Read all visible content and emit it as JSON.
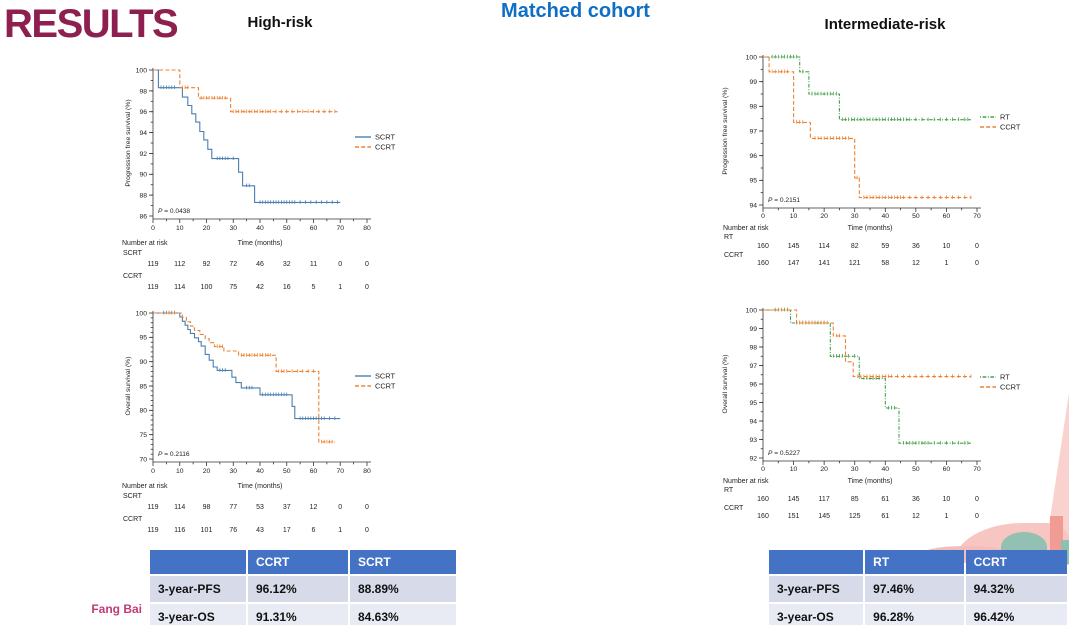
{
  "slide": {
    "title": "RESULTS",
    "subtitle": "Matched cohort",
    "left_heading": "High-risk",
    "right_heading": "Intermediate-risk",
    "author": "Fang Bai"
  },
  "colors": {
    "title": "#8e2050",
    "subtitle_blue": "#0f6fc6",
    "risk_label_blue": "#3a3ac8",
    "scrt": "#4a7fb0",
    "ccrt": "#ed8333",
    "rt": "#44a049",
    "table_header": "#4472c4",
    "author_pink": "#c23a78"
  },
  "chart_data": [
    {
      "type": "line",
      "subtype": "kaplan-meier-step",
      "title": "High-risk",
      "ylabel": "Progression free survival (%)",
      "xlabel": "Time (months)",
      "ylim": [
        86,
        100
      ],
      "ytick_step": 2,
      "xlim": [
        0,
        80
      ],
      "xtick_step": 10,
      "p_value": "P = 0.0438",
      "legend_position": "right",
      "series": [
        {
          "name": "SCRT",
          "color_key": "scrt",
          "dash": "solid",
          "points": [
            [
              0,
              100
            ],
            [
              2,
              98.3
            ],
            [
              11,
              97.4
            ],
            [
              13,
              96.6
            ],
            [
              14.5,
              95.8
            ],
            [
              16,
              95
            ],
            [
              17.5,
              94.1
            ],
            [
              19,
              93.3
            ],
            [
              20.5,
              92.4
            ],
            [
              22,
              91.5
            ],
            [
              32,
              90.2
            ],
            [
              33.5,
              88.9
            ],
            [
              38,
              87.3
            ]
          ],
          "end": 70,
          "censors": [
            3,
            4,
            5,
            6,
            7,
            8,
            24,
            25,
            26,
            27,
            28,
            30,
            35,
            36,
            40,
            41,
            42,
            43,
            44,
            45,
            46,
            47,
            48,
            49,
            50,
            51,
            52,
            53,
            55,
            57,
            59,
            61,
            63,
            65,
            67,
            69
          ]
        },
        {
          "name": "CCRT",
          "color_key": "ccrt",
          "dash": "dashed",
          "points": [
            [
              0,
              100
            ],
            [
              10,
              98.3
            ],
            [
              17,
              97.3
            ],
            [
              29,
              96
            ]
          ],
          "end": 69,
          "censors": [
            11,
            12,
            13,
            18,
            19,
            20,
            21,
            22,
            23,
            24,
            25,
            26,
            27,
            30,
            31,
            32,
            33,
            34,
            35,
            36,
            37,
            38,
            39,
            40,
            41,
            42,
            43,
            44,
            46,
            48,
            50,
            52,
            54,
            56,
            58,
            60,
            62,
            64,
            66,
            68
          ]
        }
      ],
      "number_at_risk": {
        "label": "Number at risk",
        "times": [
          0,
          10,
          20,
          30,
          40,
          50,
          60,
          70,
          80
        ],
        "rows": [
          {
            "name": "SCRT",
            "values": [
              119,
              112,
              92,
              72,
              46,
              32,
              11,
              0,
              0
            ]
          },
          {
            "name": "CCRT",
            "values": [
              119,
              114,
              100,
              75,
              42,
              16,
              5,
              1,
              0
            ]
          }
        ]
      }
    },
    {
      "type": "line",
      "subtype": "kaplan-meier-step",
      "title": "High-risk",
      "ylabel": "Overall survival (%)",
      "xlabel": "Time (months)",
      "ylim": [
        70,
        100
      ],
      "ytick_step": 5,
      "xlim": [
        0,
        80
      ],
      "xtick_step": 10,
      "p_value": "P = 0.2116",
      "legend_position": "right",
      "series": [
        {
          "name": "SCRT",
          "color_key": "scrt",
          "dash": "solid",
          "points": [
            [
              0,
              100
            ],
            [
              10,
              99.2
            ],
            [
              11,
              98.3
            ],
            [
              12,
              97.5
            ],
            [
              13,
              96.6
            ],
            [
              14,
              95.8
            ],
            [
              15.5,
              94.9
            ],
            [
              17,
              94.1
            ],
            [
              18,
              93.2
            ],
            [
              19.5,
              91.5
            ],
            [
              21,
              90.3
            ],
            [
              22.5,
              88.9
            ],
            [
              24,
              88.2
            ],
            [
              29.5,
              86.8
            ],
            [
              31,
              85.7
            ],
            [
              33,
              84.6
            ],
            [
              40,
              83.2
            ],
            [
              52,
              80.8
            ],
            [
              53,
              78.3
            ]
          ],
          "end": 70,
          "censors": [
            4,
            5,
            6,
            7,
            8,
            25,
            26,
            27,
            35,
            36,
            37,
            41,
            42,
            43,
            44,
            45,
            46,
            47,
            48,
            49,
            50,
            55,
            56,
            57,
            58,
            59,
            60,
            61,
            62,
            63,
            64,
            66,
            68
          ]
        },
        {
          "name": "CCRT",
          "color_key": "ccrt",
          "dash": "dashed",
          "points": [
            [
              0,
              100
            ],
            [
              11,
              99.1
            ],
            [
              12.5,
              98.2
            ],
            [
              14,
              97.3
            ],
            [
              15.5,
              96.4
            ],
            [
              17.5,
              95.6
            ],
            [
              19.5,
              94.7
            ],
            [
              21,
              93.9
            ],
            [
              23,
              93.1
            ],
            [
              26.5,
              92.2
            ],
            [
              32,
              91.3
            ],
            [
              46,
              88
            ],
            [
              62,
              73.5
            ]
          ],
          "end": 68,
          "censors": [
            5,
            6,
            8,
            24,
            25,
            26,
            33,
            34,
            35,
            36,
            37,
            38,
            39,
            40,
            41,
            42,
            43,
            44,
            47,
            48,
            49,
            50,
            52,
            54,
            56,
            58,
            60,
            63,
            64,
            65,
            66,
            67
          ]
        }
      ],
      "number_at_risk": {
        "label": "Number at risk",
        "times": [
          0,
          10,
          20,
          30,
          40,
          50,
          60,
          70,
          80
        ],
        "rows": [
          {
            "name": "SCRT",
            "values": [
              119,
              114,
              98,
              77,
              53,
              37,
              12,
              0,
              0
            ]
          },
          {
            "name": "CCRT",
            "values": [
              119,
              116,
              101,
              76,
              43,
              17,
              6,
              1,
              0
            ]
          }
        ]
      }
    },
    {
      "type": "line",
      "subtype": "kaplan-meier-step",
      "title": "Intermediate-risk",
      "ylabel": "Progression free survival (%)",
      "xlabel": "Time (months)",
      "ylim": [
        94,
        100
      ],
      "ytick_step": 1,
      "xlim": [
        0,
        70
      ],
      "xtick_step": 10,
      "p_value": "P = 0.2151",
      "legend_position": "right",
      "series": [
        {
          "name": "RT",
          "color_key": "rt",
          "dash": "dashdot",
          "points": [
            [
              0,
              100
            ],
            [
              12,
              99.4
            ],
            [
              15,
              98.5
            ],
            [
              25,
              97.46
            ]
          ],
          "end": 68,
          "censors": [
            3,
            4,
            5,
            6,
            7,
            8,
            9,
            10,
            11,
            13,
            16,
            17,
            18,
            19,
            20,
            21,
            22,
            23,
            24,
            26,
            27,
            28,
            29,
            30,
            31,
            32,
            33,
            34,
            35,
            36,
            37,
            38,
            39,
            40,
            41,
            42,
            43,
            44,
            45,
            46,
            47,
            48,
            50,
            52,
            54,
            56,
            58,
            60,
            62,
            64,
            66,
            67
          ]
        },
        {
          "name": "CCRT",
          "color_key": "ccrt",
          "dash": "dashed",
          "points": [
            [
              0,
              100
            ],
            [
              2,
              99.4
            ],
            [
              10,
              97.35
            ],
            [
              15.5,
              96.7
            ],
            [
              30,
              95.1
            ],
            [
              31.5,
              94.3
            ]
          ],
          "end": 68,
          "censors": [
            3,
            4,
            5,
            6,
            7,
            8,
            11,
            12,
            13,
            17,
            18,
            19,
            20,
            21,
            22,
            23,
            24,
            25,
            26,
            27,
            28,
            30.8,
            33,
            34,
            35,
            36,
            37,
            38,
            39,
            40,
            41,
            42,
            43,
            44,
            45,
            46,
            48,
            50,
            52,
            54,
            56,
            58,
            60,
            62,
            64,
            66,
            68
          ]
        }
      ],
      "number_at_risk": {
        "label": "Number at risk",
        "times": [
          0,
          10,
          20,
          30,
          40,
          50,
          60,
          70
        ],
        "rows": [
          {
            "name": "RT",
            "values": [
              160,
              145,
              114,
              82,
              59,
              36,
              10,
              0
            ]
          },
          {
            "name": "CCRT",
            "values": [
              160,
              147,
              141,
              121,
              58,
              12,
              1,
              0
            ]
          }
        ]
      }
    },
    {
      "type": "line",
      "subtype": "kaplan-meier-step",
      "title": "Intermediate-risk",
      "ylabel": "Overall survival (%)",
      "xlabel": "Time (months)",
      "ylim": [
        92,
        100
      ],
      "ytick_step": 1,
      "xlim": [
        0,
        70
      ],
      "xtick_step": 10,
      "p_value": "P = 0.5227",
      "legend_position": "right",
      "series": [
        {
          "name": "RT",
          "color_key": "rt",
          "dash": "dashdot",
          "points": [
            [
              0,
              100
            ],
            [
              9,
              99.3
            ],
            [
              22,
              97.5
            ],
            [
              31.5,
              96.3
            ],
            [
              40,
              94.7
            ],
            [
              44.5,
              92.8
            ]
          ],
          "end": 68,
          "censors": [
            4,
            5,
            6,
            7,
            8,
            11,
            12,
            13,
            14,
            15,
            16,
            17,
            18,
            19,
            20,
            23,
            24,
            25,
            26,
            28,
            30,
            33,
            34,
            35,
            36,
            37,
            38,
            41,
            42,
            43,
            46,
            47,
            48,
            49,
            50,
            51,
            52,
            53,
            54,
            56,
            58,
            60,
            62,
            64,
            66,
            67
          ]
        },
        {
          "name": "CCRT",
          "color_key": "ccrt",
          "dash": "dashed",
          "points": [
            [
              0,
              100
            ],
            [
              11,
              99.3
            ],
            [
              23,
              98.6
            ],
            [
              27,
              97.2
            ],
            [
              29.5,
              96.4
            ]
          ],
          "end": 68,
          "censors": [
            4,
            6,
            8,
            12,
            13,
            14,
            15,
            16,
            17,
            18,
            19,
            20,
            21,
            24,
            25,
            31,
            32,
            33,
            34,
            35,
            36,
            37,
            38,
            39,
            40,
            41,
            42,
            44,
            46,
            48,
            50,
            52,
            54,
            56,
            58,
            60,
            62,
            64,
            66,
            68
          ]
        }
      ],
      "number_at_risk": {
        "label": "Number at risk",
        "times": [
          0,
          10,
          20,
          30,
          40,
          50,
          60,
          70
        ],
        "rows": [
          {
            "name": "RT",
            "values": [
              160,
              145,
              117,
              85,
              61,
              36,
              10,
              0
            ]
          },
          {
            "name": "CCRT",
            "values": [
              160,
              151,
              145,
              125,
              61,
              12,
              1,
              0
            ]
          }
        ]
      }
    }
  ],
  "tables": [
    {
      "headers": [
        "",
        "CCRT",
        "SCRT"
      ],
      "rows": [
        [
          "3-year-PFS",
          "96.12%",
          "88.89%"
        ],
        [
          "3-year-OS",
          "91.31%",
          "84.63%"
        ]
      ]
    },
    {
      "headers": [
        "",
        "RT",
        "CCRT"
      ],
      "rows": [
        [
          "3-year-PFS",
          "97.46%",
          "94.32%"
        ],
        [
          "3-year-OS",
          "96.28%",
          "96.42%"
        ]
      ]
    }
  ]
}
